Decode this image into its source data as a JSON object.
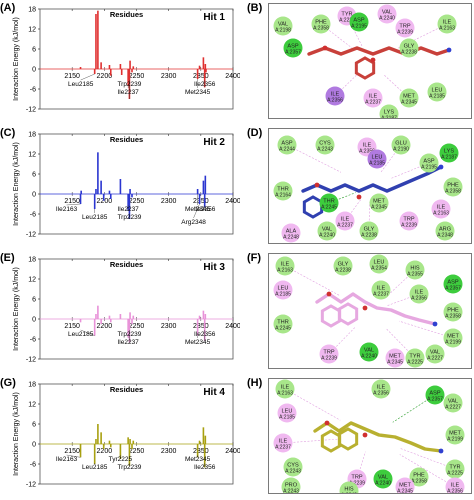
{
  "chart_data": [
    {
      "type": "bar",
      "panel_label": "(A)",
      "hit_label": "Hit 1",
      "title": "Residues",
      "ylabel": "Interaction Energy (kJ/mol)",
      "color": "#e03030",
      "xlim": [
        2100,
        2400
      ],
      "ylim": [
        -12,
        18
      ],
      "yticks": [
        18,
        12,
        6,
        0,
        -6,
        -12
      ],
      "xticks": [
        2150,
        2200,
        2250,
        2300,
        2350,
        2400
      ],
      "x": [
        2163,
        2185,
        2187,
        2190,
        2195,
        2208,
        2210,
        2225,
        2227,
        2237,
        2239,
        2240,
        2243,
        2245,
        2345,
        2348,
        2354,
        2356,
        2357,
        2358
      ],
      "values": [
        0.6,
        -1.5,
        16.5,
        17.5,
        2.0,
        1.2,
        -2.0,
        1.5,
        -1.8,
        -5.0,
        -9.0,
        2.5,
        -1.0,
        0.8,
        -3.0,
        1.0,
        3.5,
        -5.5,
        1.5,
        -1.0
      ],
      "annotations": [
        {
          "label": "Leu2185",
          "x": 2185
        },
        {
          "label": "Ile2237",
          "x": 2237
        },
        {
          "label": "Trp2239",
          "x": 2239
        },
        {
          "label": "Met2345",
          "x": 2345
        },
        {
          "label": "Ile2356",
          "x": 2356
        }
      ]
    },
    {
      "type": "bar",
      "panel_label": "(C)",
      "hit_label": "Hit 2",
      "title": "Residues",
      "ylabel": "Interaction Energy (kJ/mol)",
      "color": "#2a35d0",
      "xlim": [
        2100,
        2400
      ],
      "ylim": [
        -12,
        18
      ],
      "yticks": [
        18,
        12,
        6,
        0,
        -6,
        -12
      ],
      "xticks": [
        2150,
        2200,
        2250,
        2300,
        2350,
        2400
      ],
      "x": [
        2163,
        2164,
        2185,
        2187,
        2190,
        2195,
        2199,
        2208,
        2210,
        2225,
        2237,
        2239,
        2240,
        2243,
        2345,
        2348,
        2354,
        2356,
        2357
      ],
      "values": [
        -3.0,
        1.0,
        -4.5,
        1.5,
        12.5,
        4.0,
        -2.0,
        1.0,
        -1.5,
        4.5,
        -5.0,
        -7.5,
        1.5,
        -1.0,
        1.5,
        -3.0,
        4.0,
        -4.0,
        5.5
      ],
      "annotations": [
        {
          "label": "Ile2163",
          "x": 2163
        },
        {
          "label": "Leu2185",
          "x": 2185
        },
        {
          "label": "Ile2237",
          "x": 2237
        },
        {
          "label": "Trp2239",
          "x": 2239
        },
        {
          "label": "Met2345",
          "x": 2345
        },
        {
          "label": "Arg2348",
          "x": 2348
        },
        {
          "label": "Ile2356",
          "x": 2356
        }
      ]
    },
    {
      "type": "bar",
      "panel_label": "(E)",
      "hit_label": "Hit 3",
      "title": "Residues",
      "ylabel": "Interaction Energy (kJ/mol)",
      "color": "#e892d8",
      "xlim": [
        2100,
        2400
      ],
      "ylim": [
        -12,
        18
      ],
      "yticks": [
        18,
        12,
        6,
        0,
        -6,
        -12
      ],
      "xticks": [
        2150,
        2200,
        2250,
        2300,
        2350,
        2400
      ],
      "x": [
        2163,
        2185,
        2187,
        2190,
        2195,
        2208,
        2210,
        2225,
        2237,
        2239,
        2240,
        2243,
        2245,
        2345,
        2348,
        2354,
        2356,
        2357
      ],
      "values": [
        -1.0,
        -5.0,
        1.5,
        4.0,
        -1.5,
        1.0,
        -1.0,
        1.5,
        -5.5,
        -7.0,
        2.0,
        -1.5,
        1.0,
        -5.0,
        1.0,
        2.5,
        -6.5,
        1.5
      ],
      "annotations": [
        {
          "label": "Leu2185",
          "x": 2185
        },
        {
          "label": "Ile2237",
          "x": 2237
        },
        {
          "label": "Trp2239",
          "x": 2239
        },
        {
          "label": "Met2345",
          "x": 2345
        },
        {
          "label": "Ile2356",
          "x": 2356
        }
      ]
    },
    {
      "type": "bar",
      "panel_label": "(G)",
      "hit_label": "Hit 4",
      "title": "Residues",
      "ylabel": "Interaction Energy (kJ/mol)",
      "color": "#a8a010",
      "xlim": [
        2100,
        2400
      ],
      "ylim": [
        -12,
        18
      ],
      "yticks": [
        18,
        12,
        6,
        0,
        -6,
        -12
      ],
      "xticks": [
        2150,
        2200,
        2250,
        2300,
        2350,
        2400
      ],
      "x": [
        2163,
        2185,
        2187,
        2190,
        2195,
        2199,
        2208,
        2210,
        2225,
        2237,
        2239,
        2240,
        2243,
        2245,
        2345,
        2348,
        2354,
        2356,
        2357
      ],
      "values": [
        -4.0,
        -6.0,
        1.5,
        6.0,
        3.5,
        -1.5,
        1.0,
        -1.0,
        -4.5,
        2.0,
        -6.5,
        1.5,
        -1.5,
        1.0,
        -4.0,
        1.0,
        5.0,
        -7.0,
        2.5
      ],
      "annotations": [
        {
          "label": "Ile2163",
          "x": 2163
        },
        {
          "label": "Leu2185",
          "x": 2185
        },
        {
          "label": "Tyr2225",
          "x": 2225
        },
        {
          "label": "Trp2239",
          "x": 2239
        },
        {
          "label": "Met2345",
          "x": 2345
        },
        {
          "label": "Ile2356",
          "x": 2356
        }
      ]
    }
  ],
  "diagrams": [
    {
      "panel_label": "(B)",
      "residues": [
        {
          "label": "TYR\nA:2225",
          "type": "pink"
        },
        {
          "label": "VAL\nA:2240",
          "type": "pink"
        },
        {
          "label": "VAL\nA:2198",
          "type": "green"
        },
        {
          "label": "PHE\nA:2358",
          "type": "green"
        },
        {
          "label": "ASP\nA:2195",
          "type": "bright"
        },
        {
          "label": "TRP\nA:2239",
          "type": "pink"
        },
        {
          "label": "ILE\nA:2163",
          "type": "green"
        },
        {
          "label": "ASP\nA:2357",
          "type": "bright"
        },
        {
          "label": "GLY\nA:2238",
          "type": "green"
        },
        {
          "label": "ILE\nA:2356",
          "type": "purple"
        },
        {
          "label": "LEU\nA:2185",
          "type": "green"
        },
        {
          "label": "ILE\nA:2237",
          "type": "pink"
        },
        {
          "label": "MET\nA:2345",
          "type": "green"
        },
        {
          "label": "LYS\nA:2187",
          "type": "green"
        }
      ]
    },
    {
      "panel_label": "(D)",
      "residues": [
        {
          "label": "ASP\nA:2244",
          "type": "green"
        },
        {
          "label": "CYS\nA:2243",
          "type": "green"
        },
        {
          "label": "ILE\nA:2356",
          "type": "pink"
        },
        {
          "label": "GLU\nA:2190",
          "type": "green"
        },
        {
          "label": "LYS\nA:2187",
          "type": "bright"
        },
        {
          "label": "LEU\nA:2185",
          "type": "purple"
        },
        {
          "label": "ASP\nA:2195",
          "type": "green"
        },
        {
          "label": "THR\nA:2164",
          "type": "green"
        },
        {
          "label": "PHE\nA:2358",
          "type": "green"
        },
        {
          "label": "THR\nA:2245",
          "type": "bright"
        },
        {
          "label": "MET\nA:2345",
          "type": "green"
        },
        {
          "label": "ILE\nA:2163",
          "type": "pink"
        },
        {
          "label": "ILE\nA:2237",
          "type": "pink"
        },
        {
          "label": "TRP\nA:2239",
          "type": "pink"
        },
        {
          "label": "VAL\nA:2240",
          "type": "green"
        },
        {
          "label": "GLY\nA:2238",
          "type": "green"
        },
        {
          "label": "ALA\nA:2248",
          "type": "pink"
        },
        {
          "label": "ARG\nA:2348",
          "type": "green"
        }
      ]
    },
    {
      "panel_label": "(F)",
      "residues": [
        {
          "label": "ILE\nA:2163",
          "type": "green"
        },
        {
          "label": "GLY\nA:2238",
          "type": "green"
        },
        {
          "label": "LEU\nA:2354",
          "type": "green"
        },
        {
          "label": "HIS\nA:2355",
          "type": "green"
        },
        {
          "label": "LEU\nA:2185",
          "type": "pink"
        },
        {
          "label": "ILE\nA:2237",
          "type": "green"
        },
        {
          "label": "ILE\nA:2356",
          "type": "green"
        },
        {
          "label": "ASP\nA:2357",
          "type": "bright"
        },
        {
          "label": "PHE\nA:2358",
          "type": "green"
        },
        {
          "label": "MET\nA:2199",
          "type": "green"
        },
        {
          "label": "THR\nA:2245",
          "type": "green"
        },
        {
          "label": "VAL\nA:2227",
          "type": "green"
        },
        {
          "label": "TRP\nA:2239",
          "type": "pink"
        },
        {
          "label": "VAL\nA:2240",
          "type": "bright"
        },
        {
          "label": "MET\nA:2345",
          "type": "pink"
        },
        {
          "label": "TYR\nA:2225",
          "type": "green"
        }
      ]
    },
    {
      "panel_label": "(H)",
      "residues": [
        {
          "label": "ILE\nA:2163",
          "type": "green"
        },
        {
          "label": "ILE\nA:2356",
          "type": "green"
        },
        {
          "label": "LEU\nA:2185",
          "type": "pink"
        },
        {
          "label": "ASP\nA:2357",
          "type": "bright"
        },
        {
          "label": "VAL\nA:2227",
          "type": "green"
        },
        {
          "label": "MET\nA:2199",
          "type": "green"
        },
        {
          "label": "ILE\nA:2237",
          "type": "pink"
        },
        {
          "label": "CYS\nA:2243",
          "type": "green"
        },
        {
          "label": "PRO\nA:2243",
          "type": "green"
        },
        {
          "label": "TRP\nA:2239",
          "type": "pink"
        },
        {
          "label": "VAL\nA:2240",
          "type": "bright"
        },
        {
          "label": "PHE\nA:2358",
          "type": "green"
        },
        {
          "label": "TYR\nA:2225",
          "type": "green"
        },
        {
          "label": "HIS\nA:2242",
          "type": "green"
        },
        {
          "label": "MET\nA:2345",
          "type": "pink"
        },
        {
          "label": "ILE\nA:2356",
          "type": "pink"
        }
      ]
    }
  ],
  "colors": {
    "green": "#a8e68a",
    "bright": "#3dcc3d",
    "pink": "#f0b8f0",
    "purple": "#b07ae0",
    "ligand_hit1": "#c8403a",
    "ligand_hit2": "#3040b0",
    "ligand_hit3": "#e6a8e0",
    "ligand_hit4": "#b8b030"
  }
}
